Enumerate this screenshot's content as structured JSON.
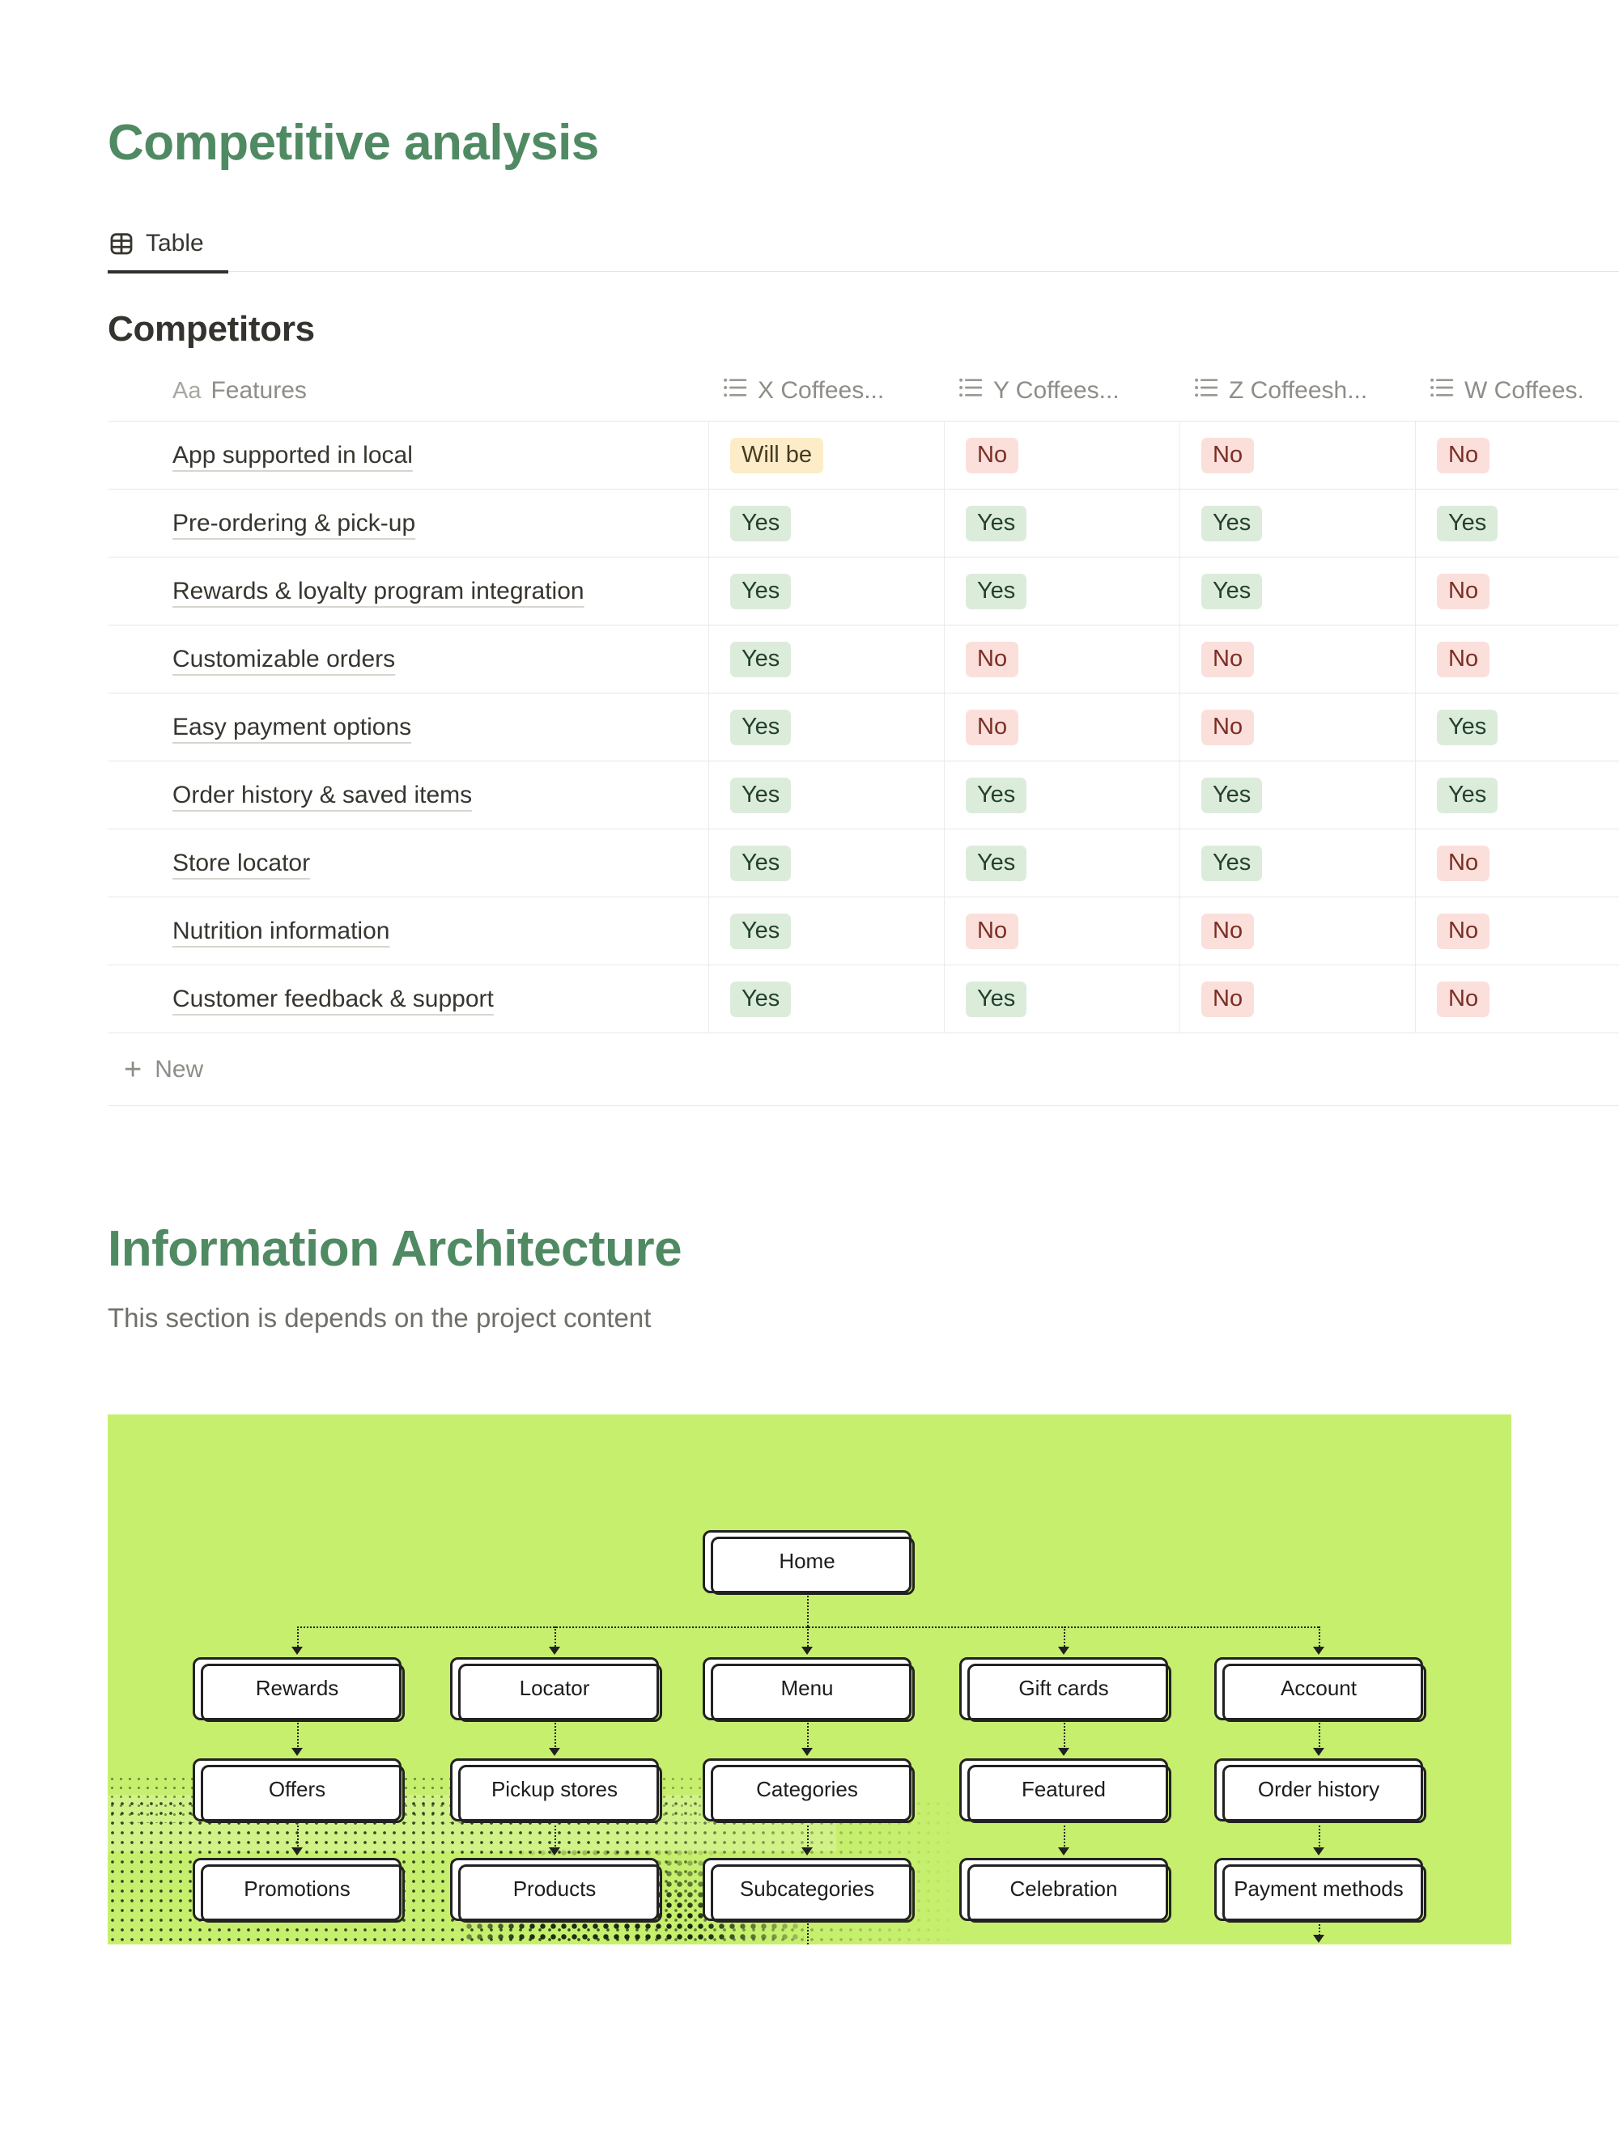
{
  "colors": {
    "heading_green": "#4f8a63",
    "diagram_lime": "#c7ef6e",
    "badge_yellow_bg": "#fdecc8",
    "badge_green_bg": "#dcecdb",
    "badge_red_bg": "#fbdfdb"
  },
  "competitive": {
    "title": "Competitive analysis",
    "tab": {
      "label": "Table",
      "icon": "table-view-icon"
    }
  },
  "table": {
    "title": "Competitors",
    "columns": [
      {
        "icon": "title-aa-icon",
        "icon_text": "Aa",
        "label": "Features"
      },
      {
        "icon": "list-icon",
        "label": "X Coffees..."
      },
      {
        "icon": "list-icon",
        "label": "Y Coffees..."
      },
      {
        "icon": "list-icon",
        "label": "Z Coffeesh..."
      },
      {
        "icon": "list-icon",
        "label": "W Coffees."
      }
    ],
    "rows": [
      {
        "feature": "App supported in local",
        "values": [
          "Will be",
          "No",
          "No",
          "No"
        ],
        "colors": [
          "yellow",
          "red",
          "red",
          "red"
        ]
      },
      {
        "feature": "Pre-ordering & pick-up",
        "values": [
          "Yes",
          "Yes",
          "Yes",
          "Yes"
        ],
        "colors": [
          "green",
          "green",
          "green",
          "green"
        ]
      },
      {
        "feature": "Rewards & loyalty program integration",
        "values": [
          "Yes",
          "Yes",
          "Yes",
          "No"
        ],
        "colors": [
          "green",
          "green",
          "green",
          "red"
        ]
      },
      {
        "feature": "Customizable orders",
        "values": [
          "Yes",
          "No",
          "No",
          "No"
        ],
        "colors": [
          "green",
          "red",
          "red",
          "red"
        ]
      },
      {
        "feature": "Easy payment options",
        "values": [
          "Yes",
          "No",
          "No",
          "Yes"
        ],
        "colors": [
          "green",
          "red",
          "red",
          "green"
        ]
      },
      {
        "feature": "Order history & saved items",
        "values": [
          "Yes",
          "Yes",
          "Yes",
          "Yes"
        ],
        "colors": [
          "green",
          "green",
          "green",
          "green"
        ]
      },
      {
        "feature": "Store locator",
        "values": [
          "Yes",
          "Yes",
          "Yes",
          "No"
        ],
        "colors": [
          "green",
          "green",
          "green",
          "red"
        ]
      },
      {
        "feature": "Nutrition information",
        "values": [
          "Yes",
          "No",
          "No",
          "No"
        ],
        "colors": [
          "green",
          "red",
          "red",
          "red"
        ]
      },
      {
        "feature": "Customer feedback & support",
        "values": [
          "Yes",
          "Yes",
          "No",
          "No"
        ],
        "colors": [
          "green",
          "green",
          "red",
          "red"
        ]
      }
    ],
    "new_button": "New",
    "new_icon": "plus-icon"
  },
  "info_arch": {
    "title": "Information Architecture",
    "subtitle": "This section is depends on the project content",
    "diagram": {
      "root": "Home",
      "columns": [
        {
          "level2": "Rewards",
          "level3": "Offers",
          "level4": "Promotions"
        },
        {
          "level2": "Locator",
          "level3": "Pickup stores",
          "level4": "Products"
        },
        {
          "level2": "Menu",
          "level3": "Categories",
          "level4": "Subcategories"
        },
        {
          "level2": "Gift cards",
          "level3": "Featured",
          "level4": "Celebration"
        },
        {
          "level2": "Account",
          "level3": "Order history",
          "level4": "Payment methods"
        }
      ]
    }
  }
}
